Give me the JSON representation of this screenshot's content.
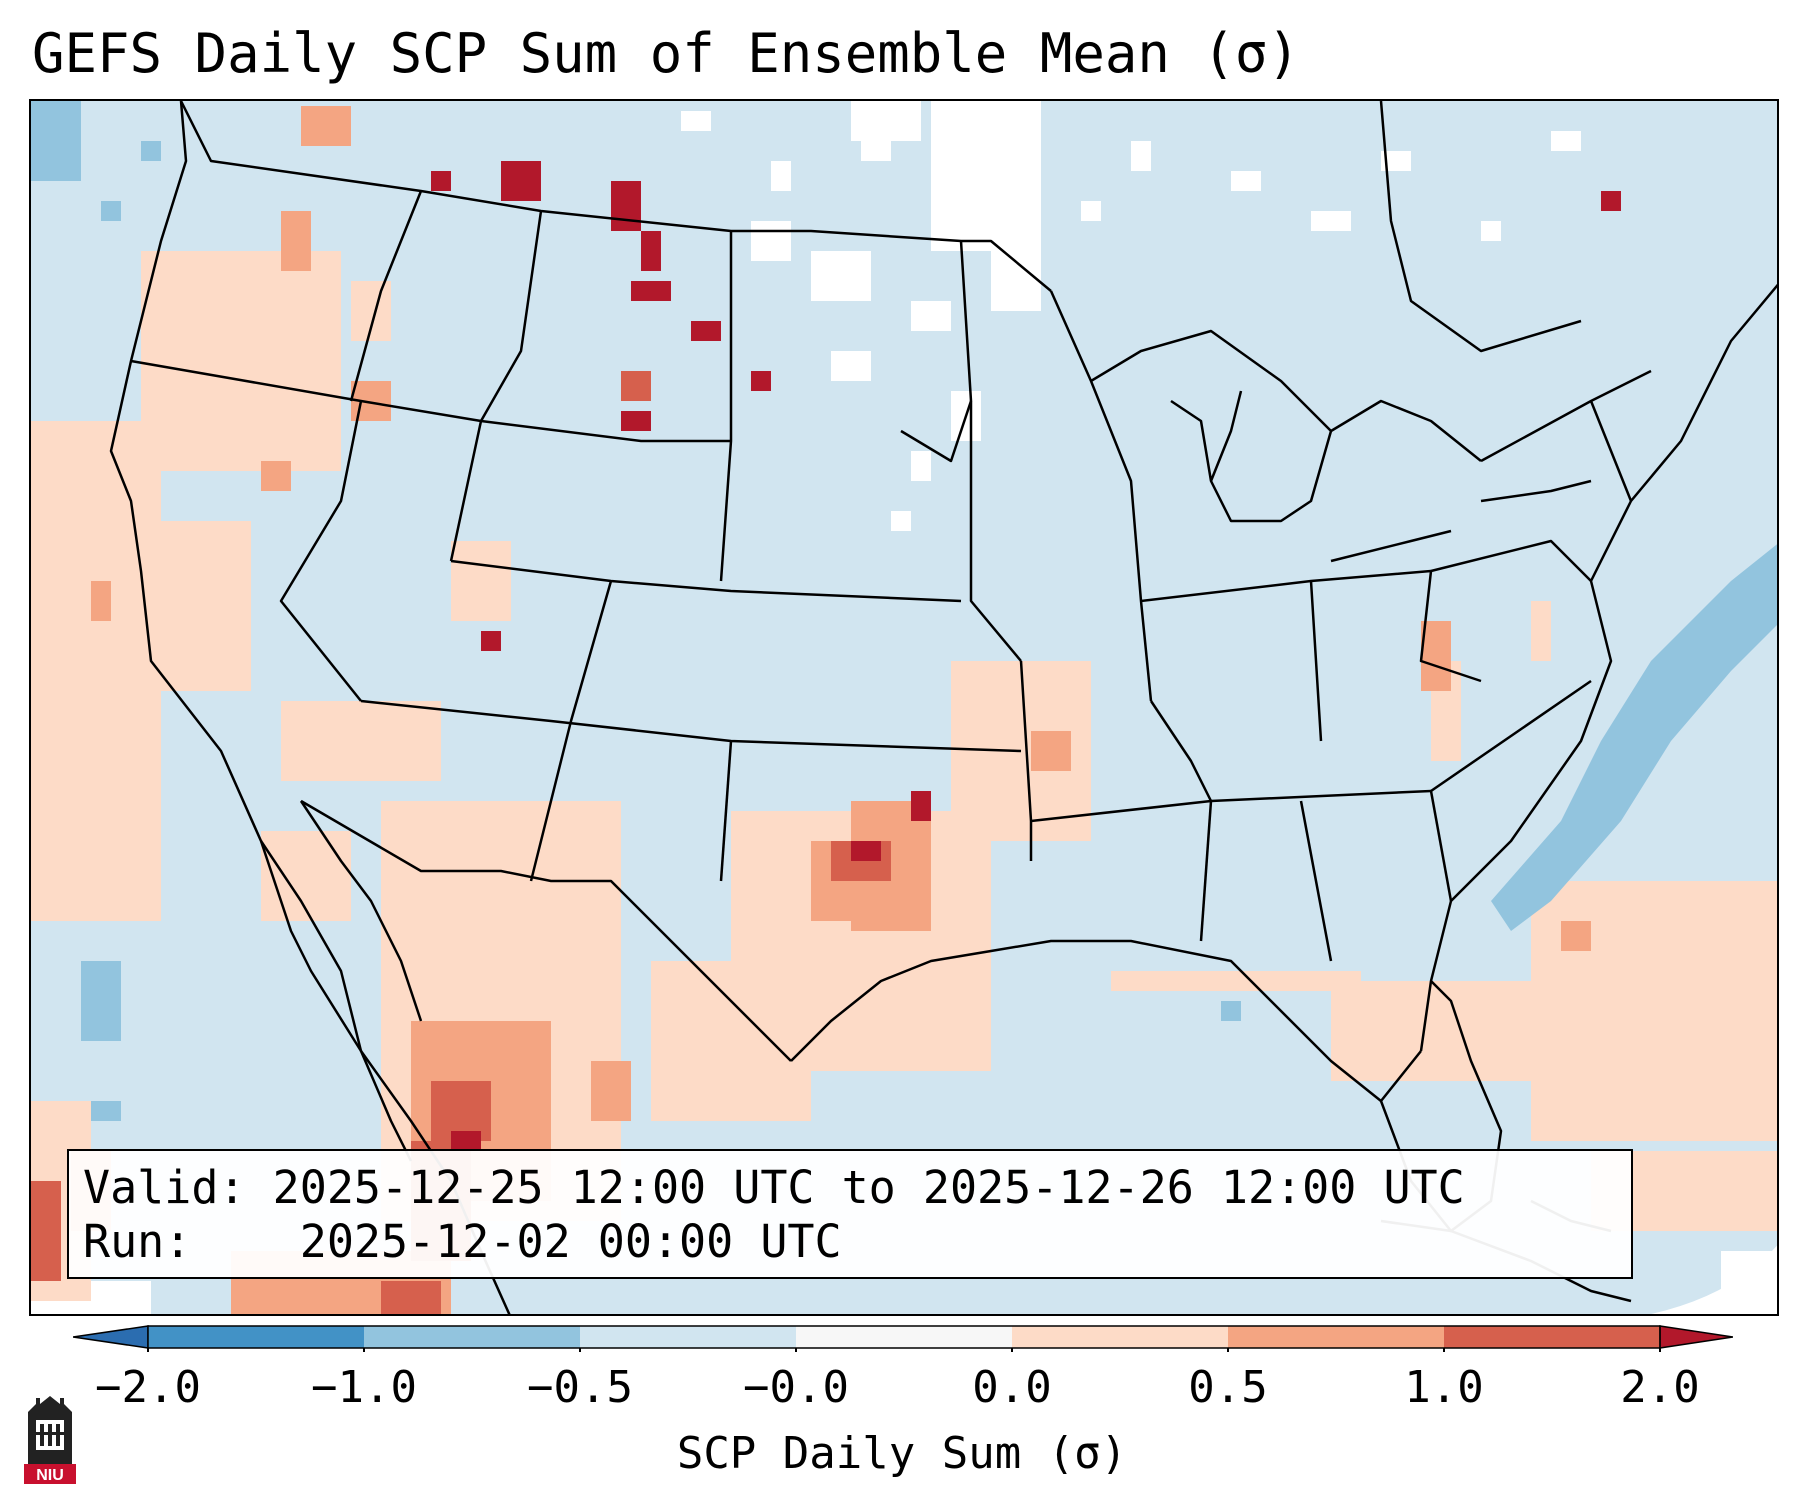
{
  "title": "GEFS Daily SCP Sum of Ensemble Mean (σ)",
  "info": {
    "valid_label": "Valid:",
    "valid_value": "2025-12-25 12:00 UTC to 2025-12-26 12:00 UTC",
    "run_label": "Run:",
    "run_value": "2025-12-02 00:00 UTC"
  },
  "colorbar": {
    "label": "SCP Daily Sum (σ)",
    "ticks": [
      "−2.0",
      "−1.0",
      "−0.5",
      "−0.0",
      "0.0",
      "0.5",
      "1.0",
      "2.0"
    ],
    "colors": {
      "below_min": "#2b6db0",
      "c1": "#4292c6",
      "c2": "#92c4de",
      "c3": "#d1e5f0",
      "c4": "#f7f7f7",
      "c5": "#fddbc7",
      "c6": "#f4a582",
      "c7": "#d6604d",
      "above_max": "#b2182b"
    }
  },
  "map": {
    "background_color": "#d1e5f0",
    "no_data_color": "#ffffff",
    "boundary_color": "#000000"
  },
  "logo": {
    "text": "NIU"
  }
}
